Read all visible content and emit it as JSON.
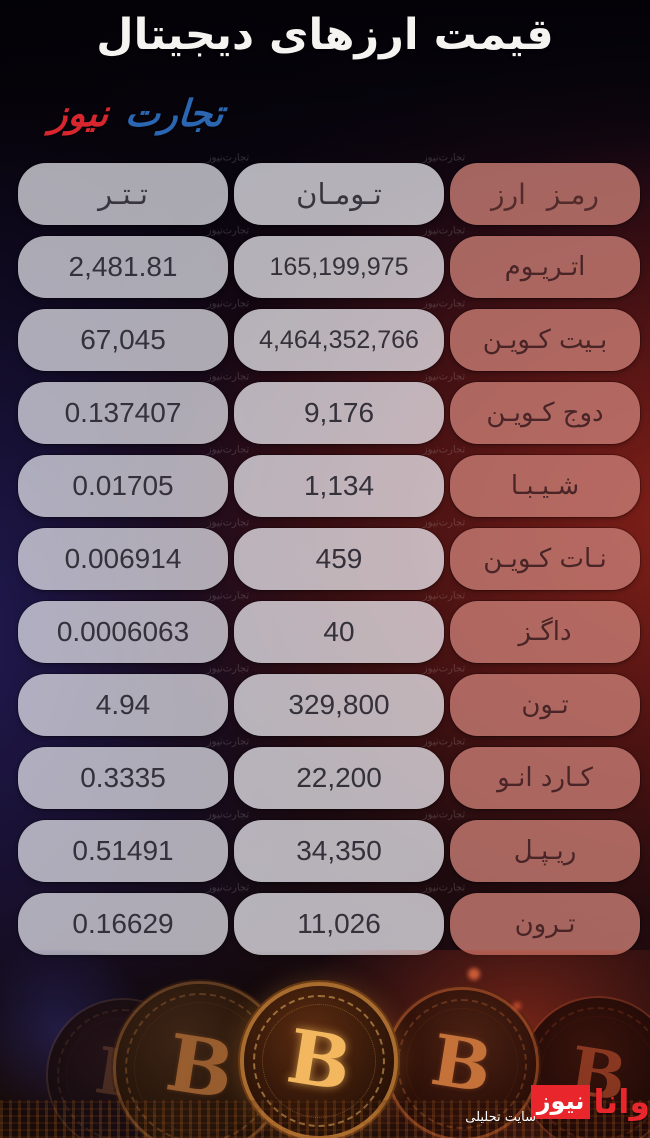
{
  "title": "قیمت ارزهای دیجیتال",
  "brand": {
    "blue": "تجارت",
    "red": "نیوز"
  },
  "watermark_text": "تجارت‌نیوز",
  "table": {
    "header": {
      "crypto": "رمـز ارز",
      "toman": "تـومـان",
      "tether": "تـتـر"
    },
    "rows": [
      {
        "name": "اتـریـوم",
        "toman": "165,199,975",
        "tether": "2,481.81"
      },
      {
        "name": "بـیت کـویـن",
        "toman": "4,464,352,766",
        "tether": "67,045"
      },
      {
        "name": "دوج کـویـن",
        "toman": "9,176",
        "tether": "0.137407"
      },
      {
        "name": "شـیـبـا",
        "toman": "1,134",
        "tether": "0.01705"
      },
      {
        "name": "نـات کـویـن",
        "toman": "459",
        "tether": "0.006914"
      },
      {
        "name": "داگـز",
        "toman": "40",
        "tether": "0.0006063"
      },
      {
        "name": "تـون",
        "toman": "329,800",
        "tether": "4.94"
      },
      {
        "name": "کـارد انـو",
        "toman": "22,200",
        "tether": "0.3335"
      },
      {
        "name": "ریـپـل",
        "toman": "34,350",
        "tether": "0.51491"
      },
      {
        "name": "تـرون",
        "toman": "11,026",
        "tether": "0.16629"
      }
    ]
  },
  "footer_logo": {
    "name_red": "وانا",
    "name_boxed": "نیوز",
    "subtitle": "سایت تحلیلی"
  },
  "colors": {
    "title_text": "#f6f4f0",
    "brand_blue": "#2a66b2",
    "brand_red": "#d8262e",
    "wana_red": "#e8262c",
    "pill_gray": "#b4b2bd",
    "pill_pink": "#a56b66",
    "bg_red_glow": "#98241a",
    "bg_blue_glow": "#282064",
    "coin_gold": "#f3b85f"
  },
  "chart_data": {
    "type": "table",
    "title": "قیمت ارزهای دیجیتال",
    "columns": [
      "رمز ارز",
      "تومان",
      "تتر"
    ],
    "rows": [
      [
        "اتریوم",
        "165,199,975",
        "2,481.81"
      ],
      [
        "بیت کوین",
        "4,464,352,766",
        "67,045"
      ],
      [
        "دوج کوین",
        "9,176",
        "0.137407"
      ],
      [
        "شیبا",
        "1,134",
        "0.01705"
      ],
      [
        "نات کوین",
        "459",
        "0.006914"
      ],
      [
        "داگز",
        "40",
        "0.0006063"
      ],
      [
        "تون",
        "329,800",
        "4.94"
      ],
      [
        "کاردانو",
        "22,200",
        "0.3335"
      ],
      [
        "ریپل",
        "34,350",
        "0.51491"
      ],
      [
        "ترون",
        "11,026",
        "0.16629"
      ]
    ]
  }
}
